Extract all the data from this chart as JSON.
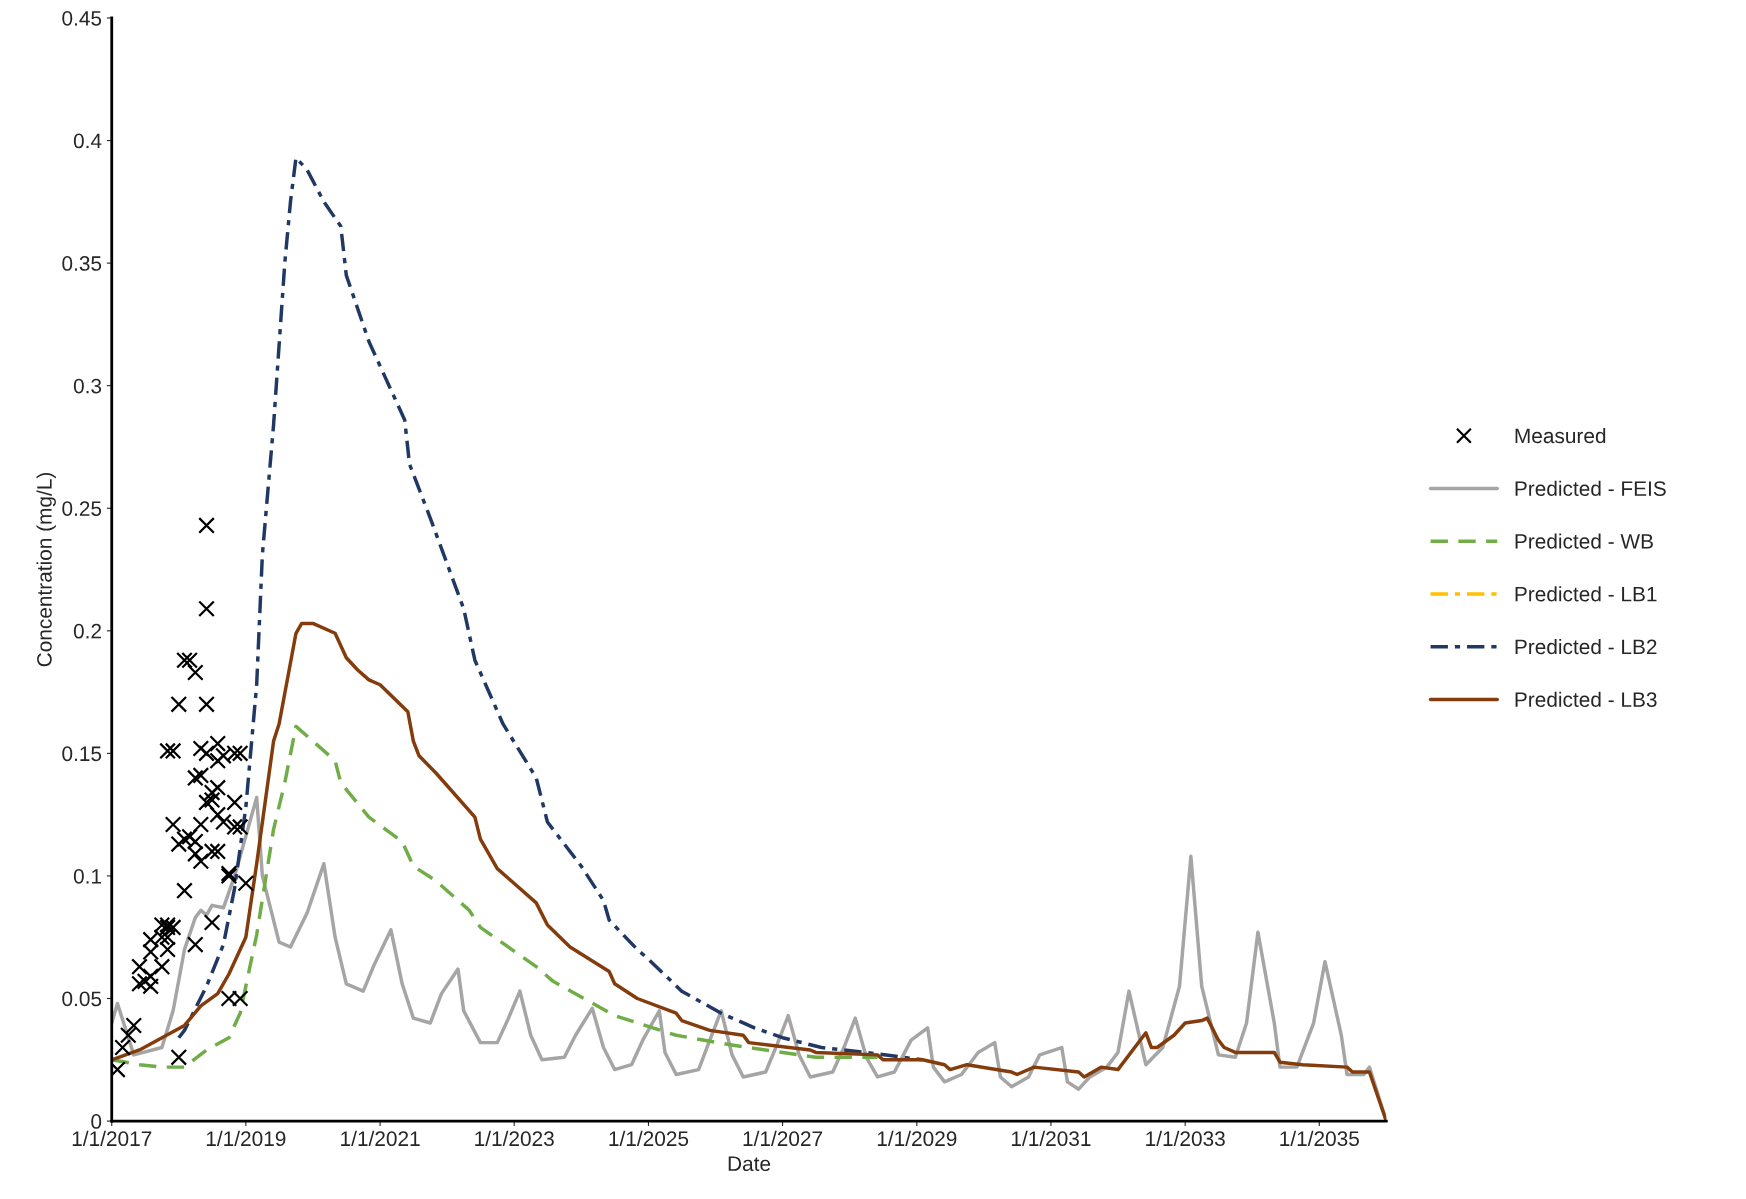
{
  "chart_data": {
    "type": "line",
    "xlabel": "Date",
    "ylabel": "Concentration (mg/L)",
    "xlim": [
      "2017-01-01",
      "2036-01-01"
    ],
    "ylim": [
      0,
      0.45
    ],
    "xticks": [
      {
        "value": "2017-01-01",
        "label": "1/1/2017"
      },
      {
        "value": "2019-01-01",
        "label": "1/1/2019"
      },
      {
        "value": "2021-01-01",
        "label": "1/1/2021"
      },
      {
        "value": "2023-01-01",
        "label": "1/1/2023"
      },
      {
        "value": "2025-01-01",
        "label": "1/1/2025"
      },
      {
        "value": "2027-01-01",
        "label": "1/1/2027"
      },
      {
        "value": "2029-01-01",
        "label": "1/1/2029"
      },
      {
        "value": "2031-01-01",
        "label": "1/1/2031"
      },
      {
        "value": "2033-01-01",
        "label": "1/1/2033"
      },
      {
        "value": "2035-01-01",
        "label": "1/1/2035"
      }
    ],
    "yticks": [
      0,
      0.05,
      0.1,
      0.15,
      0.2,
      0.25,
      0.3,
      0.35,
      0.4,
      0.45
    ],
    "grid": false,
    "legend": "right",
    "series": [
      {
        "name": "Measured",
        "type": "scatter",
        "marker": "cross",
        "color": "#000000",
        "x": [
          "2018-06-01",
          "2018-06-01",
          "2018-02-01",
          "2018-03-01",
          "2018-04-01",
          "2018-01-01",
          "2018-06-01",
          "2017-11-01",
          "2017-12-01",
          "2018-05-01",
          "2018-08-01",
          "2018-06-01",
          "2018-08-01",
          "2018-09-01",
          "2018-11-01",
          "2018-12-01",
          "2018-04-01",
          "2018-05-01",
          "2018-08-01",
          "2018-07-01",
          "2018-06-01",
          "2018-07-01",
          "2018-11-01",
          "2017-12-01",
          "2018-05-01",
          "2018-08-01",
          "2018-09-01",
          "2018-11-01",
          "2018-12-01",
          "2018-01-01",
          "2018-02-01",
          "2018-03-01",
          "2018-04-01",
          "2018-04-01",
          "2018-05-01",
          "2018-07-01",
          "2018-08-01",
          "2018-02-01",
          "2018-10-01",
          "2018-10-01",
          "2019-01-01",
          "2018-07-01",
          "2018-04-01",
          "2017-10-01",
          "2017-11-01",
          "2017-11-01",
          "2017-12-01",
          "2017-08-01",
          "2017-10-01",
          "2017-11-01",
          "2017-08-01",
          "2017-11-01",
          "2017-06-01",
          "2017-10-01",
          "2017-06-01",
          "2017-07-01",
          "2017-08-01",
          "2017-08-01",
          "2018-10-01",
          "2018-12-01",
          "2017-05-01",
          "2017-04-01",
          "2017-03-01",
          "2017-02-01",
          "2018-01-01"
        ],
        "values": [
          0.243,
          0.209,
          0.188,
          0.188,
          0.183,
          0.17,
          0.17,
          0.151,
          0.151,
          0.152,
          0.154,
          0.15,
          0.147,
          0.149,
          0.15,
          0.15,
          0.14,
          0.141,
          0.136,
          0.134,
          0.13,
          0.131,
          0.13,
          0.121,
          0.121,
          0.125,
          0.122,
          0.12,
          0.12,
          0.113,
          0.115,
          0.116,
          0.114,
          0.109,
          0.106,
          0.11,
          0.11,
          0.094,
          0.101,
          0.1,
          0.097,
          0.081,
          0.072,
          0.08,
          0.079,
          0.08,
          0.079,
          0.074,
          0.075,
          0.075,
          0.069,
          0.07,
          0.063,
          0.063,
          0.056,
          0.057,
          0.059,
          0.055,
          0.05,
          0.05,
          0.039,
          0.035,
          0.03,
          0.021,
          0.026
        ]
      },
      {
        "name": "Predicted - FEIS",
        "color": "#a5a5a5",
        "line_style": "solid",
        "x": [
          "2017-01-01",
          "2017-02-01",
          "2017-05-01",
          "2017-10-01",
          "2017-12-01",
          "2018-02-01",
          "2018-04-01",
          "2018-05-01",
          "2018-06-01",
          "2018-07-01",
          "2018-09-01",
          "2018-11-01",
          "2019-03-01",
          "2019-04-01",
          "2019-07-01",
          "2019-09-01",
          "2019-12-01",
          "2020-03-01",
          "2020-05-01",
          "2020-07-01",
          "2020-10-01",
          "2020-12-01",
          "2021-03-01",
          "2021-05-01",
          "2021-07-01",
          "2021-10-01",
          "2021-12-01",
          "2022-03-01",
          "2022-04-01",
          "2022-07-01",
          "2022-10-01",
          "2022-12-01",
          "2023-02-01",
          "2023-04-01",
          "2023-06-01",
          "2023-10-01",
          "2023-12-01",
          "2024-03-01",
          "2024-05-01",
          "2024-07-01",
          "2024-10-01",
          "2024-12-01",
          "2025-03-01",
          "2025-04-01",
          "2025-06-01",
          "2025-10-01",
          "2025-12-01",
          "2026-02-01",
          "2026-04-01",
          "2026-06-01",
          "2026-10-01",
          "2026-12-01",
          "2027-02-01",
          "2027-04-01",
          "2027-06-01",
          "2027-10-01",
          "2027-12-01",
          "2028-02-01",
          "2028-04-01",
          "2028-06-01",
          "2028-09-01",
          "2028-12-01",
          "2029-03-01",
          "2029-04-01",
          "2029-06-01",
          "2029-09-01",
          "2029-12-01",
          "2030-03-01",
          "2030-04-01",
          "2030-06-01",
          "2030-09-01",
          "2030-11-01",
          "2031-03-01",
          "2031-04-01",
          "2031-06-01",
          "2031-08-01",
          "2031-11-01",
          "2032-01-01",
          "2032-03-01",
          "2032-05-01",
          "2032-06-01",
          "2032-09-01",
          "2032-12-01",
          "2033-02-01",
          "2033-04-01",
          "2033-07-01",
          "2033-10-01",
          "2033-12-01",
          "2034-02-01",
          "2034-05-01",
          "2034-06-01",
          "2034-09-01",
          "2034-12-01",
          "2035-02-01",
          "2035-05-01",
          "2035-06-01",
          "2035-09-01",
          "2035-10-01",
          "2036-01-01"
        ],
        "values": [
          0.04,
          0.048,
          0.027,
          0.03,
          0.045,
          0.07,
          0.083,
          0.086,
          0.084,
          0.088,
          0.087,
          0.1,
          0.132,
          0.1,
          0.073,
          0.071,
          0.085,
          0.105,
          0.075,
          0.056,
          0.053,
          0.064,
          0.078,
          0.056,
          0.042,
          0.04,
          0.052,
          0.062,
          0.045,
          0.032,
          0.032,
          0.042,
          0.053,
          0.035,
          0.025,
          0.026,
          0.035,
          0.046,
          0.03,
          0.021,
          0.023,
          0.033,
          0.045,
          0.028,
          0.019,
          0.021,
          0.033,
          0.045,
          0.027,
          0.018,
          0.02,
          0.031,
          0.043,
          0.027,
          0.018,
          0.02,
          0.03,
          0.042,
          0.026,
          0.018,
          0.02,
          0.033,
          0.038,
          0.022,
          0.016,
          0.019,
          0.028,
          0.032,
          0.018,
          0.014,
          0.018,
          0.027,
          0.03,
          0.016,
          0.013,
          0.018,
          0.022,
          0.028,
          0.053,
          0.033,
          0.023,
          0.03,
          0.055,
          0.108,
          0.055,
          0.027,
          0.026,
          0.04,
          0.077,
          0.04,
          0.022,
          0.022,
          0.04,
          0.065,
          0.035,
          0.019,
          0.019,
          0.022,
          0.0
        ]
      },
      {
        "name": "Predicted - WB",
        "color": "#70ad47",
        "line_style": "dashed",
        "x": [
          "2017-01-01",
          "2017-06-01",
          "2017-10-01",
          "2018-02-01",
          "2018-06-01",
          "2018-10-01",
          "2018-12-01",
          "2019-03-01",
          "2019-06-01",
          "2019-08-01",
          "2019-10-01",
          "2020-01-01",
          "2020-05-01",
          "2020-06-01",
          "2020-11-01",
          "2021-05-01",
          "2021-07-01",
          "2021-11-01",
          "2022-05-01",
          "2022-07-01",
          "2023-05-01",
          "2023-08-01",
          "2024-07-01",
          "2025-06-01",
          "2026-04-01",
          "2027-07-01",
          "2028-06-01"
        ],
        "values": [
          0.025,
          0.023,
          0.022,
          0.022,
          0.029,
          0.034,
          0.044,
          0.076,
          0.119,
          0.138,
          0.161,
          0.155,
          0.147,
          0.138,
          0.124,
          0.114,
          0.104,
          0.098,
          0.086,
          0.079,
          0.063,
          0.057,
          0.043,
          0.035,
          0.031,
          0.026,
          0.026
        ]
      },
      {
        "name": "Predicted - LB1",
        "color": "#ffc000",
        "line_style": "dashdot"
      },
      {
        "name": "Predicted - LB2",
        "color": "#203864",
        "line_style": "dashdot",
        "x": [
          "2018-01-01",
          "2018-02-01",
          "2018-06-01",
          "2018-09-01",
          "2018-11-01",
          "2019-01-01",
          "2019-03-01",
          "2019-04-01",
          "2019-06-01",
          "2019-08-01",
          "2019-09-01",
          "2019-10-01",
          "2019-12-01",
          "2020-03-01",
          "2020-06-01",
          "2020-07-01",
          "2020-11-01",
          "2021-05-15",
          "2021-06-10",
          "2021-10-01",
          "2022-04-01",
          "2022-06-01",
          "2022-11-01",
          "2023-05-01",
          "2023-07-01",
          "2024-01-01",
          "2024-05-01",
          "2024-06-01",
          "2024-11-01",
          "2025-01-01",
          "2025-07-01",
          "2026-02-01",
          "2026-08-01",
          "2027-01-01",
          "2027-08-01",
          "2028-04-01",
          "2029-02-01"
        ],
        "values": [
          0.034,
          0.037,
          0.055,
          0.072,
          0.095,
          0.128,
          0.178,
          0.231,
          0.284,
          0.35,
          0.375,
          0.393,
          0.388,
          0.375,
          0.365,
          0.345,
          0.318,
          0.286,
          0.268,
          0.246,
          0.209,
          0.188,
          0.162,
          0.14,
          0.122,
          0.104,
          0.09,
          0.082,
          0.07,
          0.066,
          0.053,
          0.044,
          0.038,
          0.034,
          0.03,
          0.028,
          0.025
        ]
      },
      {
        "name": "Predicted - LB3",
        "color": "#843c0c",
        "line_style": "solid",
        "x": [
          "2017-01-01",
          "2017-06-01",
          "2018-02-01",
          "2018-05-01",
          "2018-08-01",
          "2018-10-01",
          "2019-01-01",
          "2019-03-01",
          "2019-06-01",
          "2019-07-01",
          "2019-10-01",
          "2019-11-01",
          "2020-01-01",
          "2020-05-01",
          "2020-07-01",
          "2020-09-01",
          "2020-11-01",
          "2021-01-01",
          "2021-06-01",
          "2021-07-01",
          "2021-08-01",
          "2021-11-01",
          "2022-06-01",
          "2022-07-01",
          "2022-10-01",
          "2023-05-01",
          "2023-07-01",
          "2023-11-01",
          "2024-06-01",
          "2024-07-01",
          "2024-11-01",
          "2025-06-01",
          "2025-07-01",
          "2025-12-01",
          "2026-06-01",
          "2026-07-01",
          "2027-06-01",
          "2027-07-01",
          "2028-06-01",
          "2028-07-01",
          "2029-02-01",
          "2029-06-01",
          "2029-07-01",
          "2029-10-01",
          "2030-06-01",
          "2030-07-01",
          "2030-10-01",
          "2031-06-01",
          "2031-07-01",
          "2031-10-01",
          "2032-01-01",
          "2032-06-01",
          "2032-07-01",
          "2032-08-01",
          "2032-11-01",
          "2033-01-01",
          "2033-04-01",
          "2033-05-01",
          "2033-07-01",
          "2033-08-01",
          "2033-10-01",
          "2034-05-01",
          "2034-06-01",
          "2034-10-01",
          "2035-06-01",
          "2035-07-01",
          "2035-10-01",
          "2036-01-01"
        ],
        "values": [
          0.025,
          0.029,
          0.039,
          0.047,
          0.052,
          0.06,
          0.075,
          0.105,
          0.155,
          0.162,
          0.199,
          0.203,
          0.203,
          0.199,
          0.189,
          0.184,
          0.18,
          0.178,
          0.167,
          0.155,
          0.149,
          0.142,
          0.124,
          0.115,
          0.103,
          0.089,
          0.08,
          0.071,
          0.061,
          0.056,
          0.05,
          0.044,
          0.041,
          0.037,
          0.035,
          0.032,
          0.029,
          0.028,
          0.027,
          0.025,
          0.025,
          0.023,
          0.021,
          0.023,
          0.02,
          0.019,
          0.022,
          0.02,
          0.018,
          0.022,
          0.021,
          0.036,
          0.03,
          0.03,
          0.035,
          0.04,
          0.041,
          0.042,
          0.033,
          0.03,
          0.028,
          0.028,
          0.024,
          0.023,
          0.022,
          0.02,
          0.02,
          0.0
        ]
      }
    ]
  }
}
